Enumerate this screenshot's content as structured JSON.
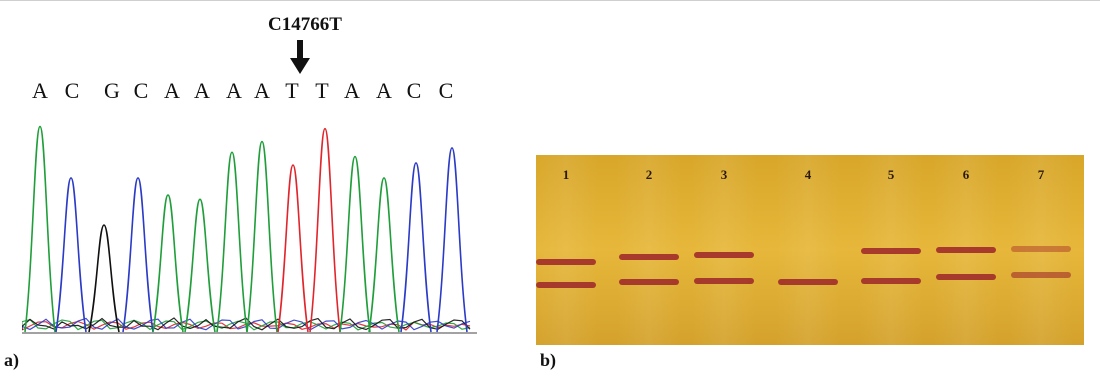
{
  "panel_a": {
    "label": "a)",
    "mutation_label": "C14766T",
    "bases": [
      "A",
      "C",
      "G",
      "C",
      "A",
      "A",
      "A",
      "A",
      "T",
      "T",
      "A",
      "A",
      "C",
      "C"
    ],
    "base_colors": {
      "A": "#1f9e3a",
      "C": "#2b3bc6",
      "G": "#111111",
      "T": "#e0262c"
    },
    "peaks": [
      {
        "base": "A",
        "height": 0.96
      },
      {
        "base": "C",
        "height": 0.72
      },
      {
        "base": "G",
        "height": 0.5
      },
      {
        "base": "C",
        "height": 0.72
      },
      {
        "base": "A",
        "height": 0.64
      },
      {
        "base": "A",
        "height": 0.62
      },
      {
        "base": "A",
        "height": 0.84
      },
      {
        "base": "A",
        "height": 0.89
      },
      {
        "base": "T",
        "height": 0.78
      },
      {
        "base": "T",
        "height": 0.95
      },
      {
        "base": "A",
        "height": 0.82
      },
      {
        "base": "A",
        "height": 0.72
      },
      {
        "base": "C",
        "height": 0.79
      },
      {
        "base": "C",
        "height": 0.86
      }
    ]
  },
  "panel_b": {
    "label": "b)",
    "lanes": [
      {
        "number": "1",
        "upper_band": true
      },
      {
        "number": "2",
        "upper_band": true
      },
      {
        "number": "3",
        "upper_band": true
      },
      {
        "number": "4",
        "upper_band": false
      },
      {
        "number": "5",
        "upper_band": true
      },
      {
        "number": "6",
        "upper_band": true
      },
      {
        "number": "7",
        "upper_band": true
      }
    ]
  }
}
